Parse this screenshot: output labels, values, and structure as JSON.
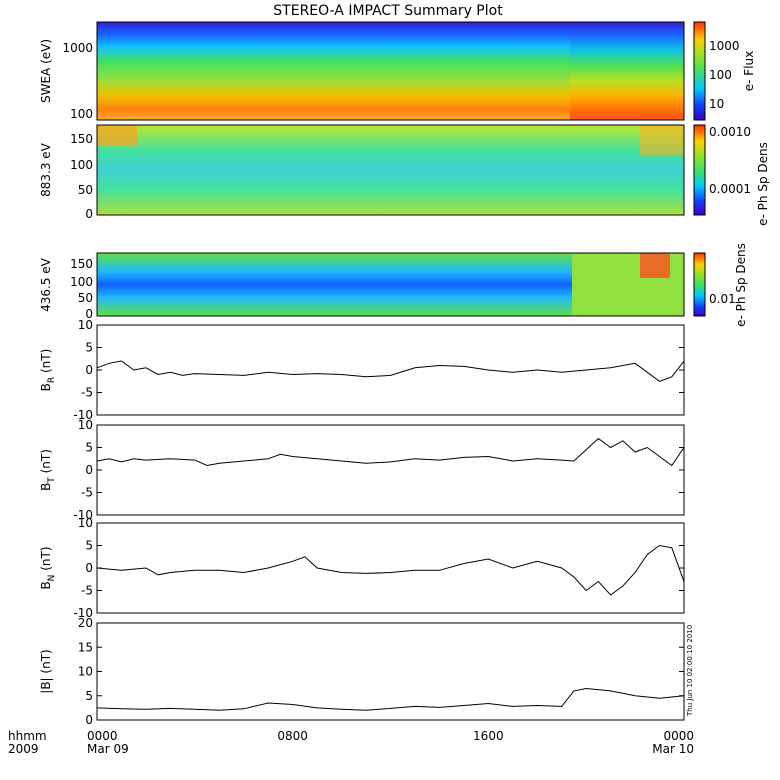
{
  "title": "STEREO-A IMPACT Summary Plot",
  "x_axis": {
    "ticks": [
      {
        "top": "0000",
        "bottom": "Mar 09"
      },
      {
        "top": "0800",
        "bottom": ""
      },
      {
        "top": "1600",
        "bottom": ""
      },
      {
        "top": "0000",
        "bottom": "Mar 10"
      }
    ],
    "corner_top": "hhmm",
    "corner_bottom": "2009"
  },
  "timestamp_note": "Thu Jun 10 02:00:10 2010",
  "colors": {
    "line": "#000000",
    "frame": "#000000"
  },
  "chart_data": [
    {
      "type": "heatmap",
      "ylabel": "SWEA (eV)",
      "yscale": "log",
      "yticks": [
        "1000",
        "100"
      ],
      "colorbar_label": "e- Flux",
      "colorbar_ticks": [
        "1000",
        "100",
        "10"
      ],
      "colormap": "rainbow (purple-blue-cyan-green-yellow-red)",
      "xlim": [
        "0000",
        "0000"
      ]
    },
    {
      "type": "heatmap",
      "ylabel": "883.3 eV",
      "yticks": [
        "150",
        "100",
        "50",
        "0"
      ],
      "ylim": [
        0,
        180
      ],
      "colorbar_label": "e- Ph Sp Dens",
      "colorbar_ticks": [
        "0.0010",
        "0.0001"
      ]
    },
    {
      "type": "heatmap",
      "ylabel": "436.5 eV",
      "yticks": [
        "150",
        "100",
        "50",
        "0"
      ],
      "ylim": [
        0,
        180
      ],
      "colorbar_label": "e- Ph Sp Dens",
      "colorbar_ticks": [
        "0.01"
      ]
    },
    {
      "type": "line",
      "ylabel": "B",
      "ylabel_sub": "R",
      "ylabel_unit": " (nT)",
      "ylim": [
        -10,
        10
      ],
      "yticks": [
        "10",
        "5",
        "0",
        "-5",
        "-10"
      ],
      "x_hours": [
        0,
        0.5,
        1,
        1.5,
        2,
        2.5,
        3,
        3.5,
        4,
        5,
        6,
        7,
        8,
        9,
        10,
        11,
        12,
        13,
        14,
        15,
        16,
        17,
        18,
        19,
        20,
        21,
        22,
        22.5,
        23,
        23.5,
        24
      ],
      "values": [
        0.5,
        1.5,
        2,
        0,
        0.5,
        -1,
        -0.5,
        -1.2,
        -0.8,
        -1,
        -1.2,
        -0.5,
        -1,
        -0.8,
        -1,
        -1.5,
        -1.2,
        0.5,
        1,
        0.8,
        0,
        -0.5,
        0,
        -0.5,
        0,
        0.5,
        1.5,
        -0.5,
        -2.5,
        -1.5,
        2
      ]
    },
    {
      "type": "line",
      "ylabel": "B",
      "ylabel_sub": "T",
      "ylabel_unit": " (nT)",
      "ylim": [
        -10,
        10
      ],
      "yticks": [
        "10",
        "5",
        "0",
        "-5",
        "-10"
      ],
      "x_hours": [
        0,
        0.5,
        1,
        1.5,
        2,
        3,
        4,
        4.5,
        5,
        6,
        7,
        7.5,
        8,
        9,
        10,
        11,
        12,
        13,
        14,
        15,
        16,
        17,
        18,
        19,
        19.5,
        20,
        20.5,
        21,
        21.5,
        22,
        22.5,
        23,
        23.5,
        24
      ],
      "values": [
        2,
        2.5,
        1.8,
        2.5,
        2.2,
        2.5,
        2.2,
        1,
        1.5,
        2,
        2.5,
        3.5,
        3,
        2.5,
        2,
        1.5,
        1.8,
        2.5,
        2.2,
        2.8,
        3,
        2,
        2.5,
        2.2,
        2,
        4.5,
        7,
        5,
        6.5,
        4,
        5,
        3,
        1,
        5
      ]
    },
    {
      "type": "line",
      "ylabel": "B",
      "ylabel_sub": "N",
      "ylabel_unit": " (nT)",
      "ylim": [
        -10,
        10
      ],
      "yticks": [
        "10",
        "5",
        "0",
        "-5",
        "-10"
      ],
      "x_hours": [
        0,
        1,
        2,
        2.5,
        3,
        4,
        5,
        6,
        7,
        8,
        8.5,
        9,
        10,
        11,
        12,
        13,
        14,
        15,
        16,
        17,
        18,
        19,
        19.5,
        20,
        20.5,
        21,
        21.5,
        22,
        22.5,
        23,
        23.5,
        24
      ],
      "values": [
        0,
        -0.5,
        0,
        -1.5,
        -1,
        -0.5,
        -0.5,
        -1,
        0,
        1.5,
        2.5,
        0,
        -1,
        -1.2,
        -1,
        -0.5,
        -0.5,
        1,
        2,
        0,
        1.5,
        0,
        -2,
        -5,
        -3,
        -6,
        -4,
        -1,
        3,
        5,
        4.5,
        -3
      ]
    },
    {
      "type": "line",
      "ylabel": "|B| (nT)",
      "ylim": [
        0,
        20
      ],
      "yticks": [
        "20",
        "15",
        "10",
        "5",
        "0"
      ],
      "x_hours": [
        0,
        1,
        2,
        3,
        4,
        5,
        6,
        7,
        8,
        9,
        10,
        11,
        12,
        13,
        14,
        15,
        16,
        17,
        18,
        19,
        19.5,
        20,
        21,
        22,
        23,
        24
      ],
      "values": [
        2.5,
        2.3,
        2.2,
        2.4,
        2.2,
        2,
        2.3,
        3.5,
        3.2,
        2.5,
        2.2,
        2,
        2.4,
        2.8,
        2.6,
        3,
        3.4,
        2.8,
        3,
        2.8,
        6,
        6.5,
        6,
        5,
        4.5,
        5
      ]
    }
  ]
}
